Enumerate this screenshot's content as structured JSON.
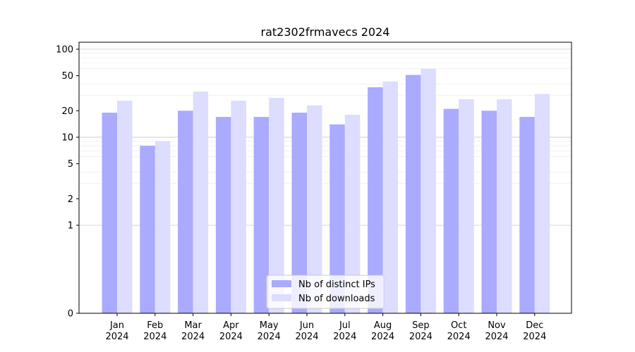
{
  "chart_data": {
    "type": "bar",
    "title": "rat2302frmavecs 2024",
    "xlabel": "",
    "ylabel": "",
    "yscale": "symlog",
    "ylim": [
      0,
      120
    ],
    "yticks": [
      0,
      1,
      2,
      5,
      10,
      20,
      50,
      100
    ],
    "categories": [
      "Jan\n2024",
      "Feb\n2024",
      "Mar\n2024",
      "Apr\n2024",
      "May\n2024",
      "Jun\n2024",
      "Jul\n2024",
      "Aug\n2024",
      "Sep\n2024",
      "Oct\n2024",
      "Nov\n2024",
      "Dec\n2024"
    ],
    "series": [
      {
        "name": "Nb of distinct IPs",
        "color": "#aaaaff",
        "values": [
          19,
          8,
          20,
          17,
          17,
          19,
          14,
          37,
          51,
          21,
          20,
          17
        ]
      },
      {
        "name": "Nb of downloads",
        "color": "#ddddff",
        "values": [
          26,
          9,
          33,
          26,
          28,
          23,
          18,
          43,
          60,
          27,
          27,
          31
        ]
      }
    ],
    "grid": true,
    "legend_position": "bottom-center"
  }
}
